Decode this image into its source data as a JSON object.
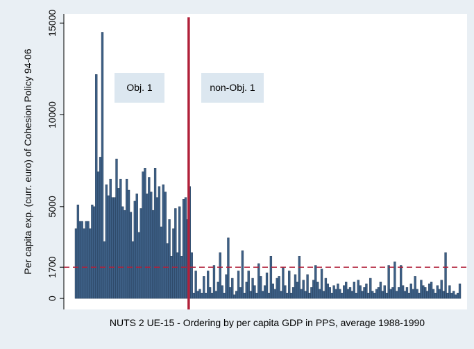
{
  "chart_data": {
    "type": "bar",
    "y_label": "Per capita exp. (curr. euro) of Cohesion Policy 94-06",
    "x_label": "NUTS 2 UE-15 - Ordering by per capita GDP in PPS, average 1988-1990",
    "annotations": [
      "Obj. 1",
      "non-Obj. 1"
    ],
    "color": "#3d5f85",
    "ylim": [
      -600,
      15500
    ],
    "yticks": [
      0,
      1700,
      5000,
      10000,
      15000
    ],
    "hline": 1700,
    "vline_after_index": 56,
    "line_color": "#b1203a",
    "values": [
      3800,
      5100,
      4200,
      4200,
      3800,
      4200,
      4200,
      3800,
      5100,
      5000,
      12200,
      6900,
      7700,
      14500,
      3100,
      6200,
      5600,
      6500,
      5500,
      5500,
      7600,
      6000,
      6500,
      5000,
      4800,
      6500,
      5900,
      4700,
      3100,
      5300,
      5700,
      3600,
      4900,
      6900,
      7100,
      5700,
      6600,
      5800,
      4800,
      7100,
      5500,
      6100,
      3900,
      6200,
      5800,
      3000,
      4300,
      2300,
      3800,
      4900,
      2500,
      5000,
      2300,
      5400,
      5500,
      4300,
      6100,
      2500,
      300,
      1500,
      400,
      500,
      300,
      1200,
      300,
      1500,
      600,
      300,
      1800,
      400,
      900,
      2500,
      700,
      300,
      1300,
      3300,
      600,
      1100,
      200,
      400,
      1500,
      600,
      2600,
      300,
      900,
      1500,
      400,
      1100,
      700,
      300,
      1900,
      1200,
      400,
      700,
      1400,
      300,
      2300,
      800,
      500,
      1100,
      1200,
      400,
      1700,
      700,
      300,
      1500,
      300,
      600,
      1300,
      900,
      2300,
      500,
      1000,
      400,
      1300,
      300,
      600,
      1000,
      1800,
      900,
      500,
      1600,
      400,
      1100,
      800,
      600,
      300,
      700,
      500,
      800,
      500,
      300,
      700,
      900,
      500,
      600,
      400,
      900,
      300,
      1000,
      700,
      400,
      600,
      800,
      300,
      1100,
      400,
      300,
      500,
      600,
      900,
      400,
      700,
      300,
      1800,
      500,
      600,
      2000,
      400,
      600,
      1800,
      700,
      400,
      600,
      300,
      800,
      500,
      1200,
      500,
      300,
      1000,
      700,
      600,
      400,
      800,
      900,
      500,
      300,
      700,
      500,
      1000,
      400,
      2500,
      300,
      700,
      300,
      400,
      200,
      300,
      800
    ]
  }
}
